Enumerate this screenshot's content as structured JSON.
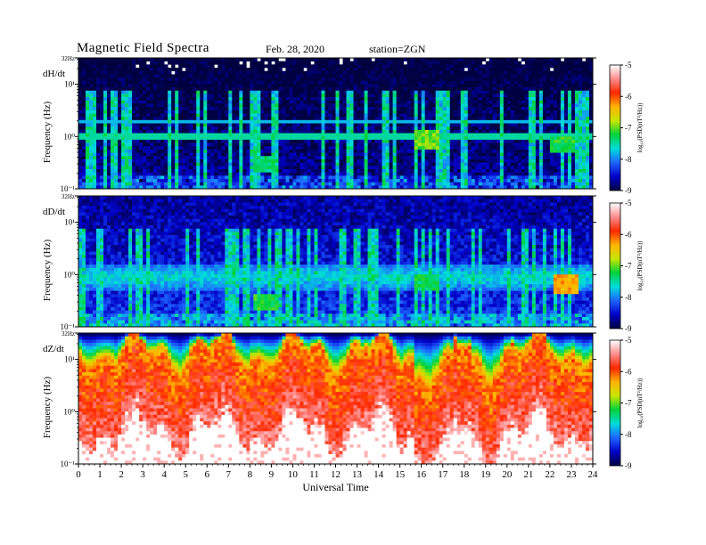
{
  "header": {
    "title": "Magnetic  Field  Spectra",
    "date": "Feb. 28, 2020",
    "station": "station=ZGN"
  },
  "colors": {
    "colormap": [
      "#000040",
      "#0000c8",
      "#1e64ff",
      "#00dcdc",
      "#00d23c",
      "#c8e600",
      "#ffb400",
      "#ff2800",
      "#ff8c8c",
      "#ffffff"
    ]
  },
  "chart_data": [
    {
      "type": "heatmap",
      "panel_label": "dH/dt",
      "ylabel": "Frequency  (Hz)",
      "y_ticks": [
        "32Hz",
        "10¹",
        "10⁰",
        "10⁻¹"
      ],
      "x_range_hours": [
        0,
        24
      ],
      "colorbar": {
        "label": "log₁₀(PSD(nT²/Hz))",
        "ticks": [
          "-5",
          "-6",
          "-7",
          "-8",
          "-9"
        ],
        "range": [
          -9,
          -5
        ]
      },
      "baseline_log_psd": -8.7,
      "features": [
        {
          "kind": "horizontal_line",
          "freq_hz": 2.0,
          "log_psd": -7.8
        },
        {
          "kind": "horizontal_line",
          "freq_hz": 1.0,
          "log_psd": -7.5
        },
        {
          "kind": "blob",
          "hour": 16.3,
          "freq_hz": 0.9,
          "log_psd": -7.0
        },
        {
          "kind": "blob",
          "hour": 22.6,
          "freq_hz": 0.7,
          "log_psd": -7.2
        },
        {
          "kind": "blob",
          "hour": 8.7,
          "freq_hz": 0.3,
          "log_psd": -7.4
        }
      ]
    },
    {
      "type": "heatmap",
      "panel_label": "dD/dt",
      "ylabel": "Frequency  (Hz)",
      "y_ticks": [
        "32Hz",
        "10¹",
        "10⁰",
        "10⁻¹"
      ],
      "x_range_hours": [
        0,
        24
      ],
      "colorbar": {
        "label": "log₁₀(PSD(nT²/Hz))",
        "ticks": [
          "-5",
          "-6",
          "-7",
          "-8",
          "-9"
        ],
        "range": [
          -9,
          -5
        ]
      },
      "baseline_log_psd": -8.3,
      "features": [
        {
          "kind": "band",
          "freq_hz": 0.9,
          "log_psd": -7.6
        },
        {
          "kind": "blob",
          "hour": 22.8,
          "freq_hz": 0.65,
          "log_psd": -6.3
        },
        {
          "kind": "blob",
          "hour": 8.8,
          "freq_hz": 0.3,
          "log_psd": -7.2
        },
        {
          "kind": "blob",
          "hour": 16.3,
          "freq_hz": 0.7,
          "log_psd": -7.3
        }
      ]
    },
    {
      "type": "heatmap",
      "panel_label": "dZ/dt",
      "ylabel": "Frequency  (Hz)",
      "y_ticks": [
        "32Hz",
        "10¹",
        "10⁰",
        "10⁻¹"
      ],
      "x_range_hours": [
        0,
        24
      ],
      "colorbar": {
        "label": "log₁₀(PSD(nT²/Hz))",
        "ticks": [
          "-5",
          "-6",
          "-7",
          "-8",
          "-9"
        ],
        "range": [
          -9,
          -5
        ]
      },
      "features": [
        {
          "kind": "spectral_front",
          "description_hours": [
            0,
            24
          ]
        },
        {
          "kind": "trough",
          "hour": 16.6,
          "freq_hz": 0.35
        },
        {
          "kind": "trough",
          "hour": 18.8,
          "freq_hz": 0.3
        }
      ]
    }
  ],
  "x_axis": {
    "label": "Universal  Time",
    "ticks": [
      "0",
      "1",
      "2",
      "3",
      "4",
      "5",
      "6",
      "7",
      "8",
      "9",
      "10",
      "11",
      "12",
      "13",
      "14",
      "15",
      "16",
      "17",
      "18",
      "19",
      "20",
      "21",
      "22",
      "23",
      "24"
    ]
  }
}
